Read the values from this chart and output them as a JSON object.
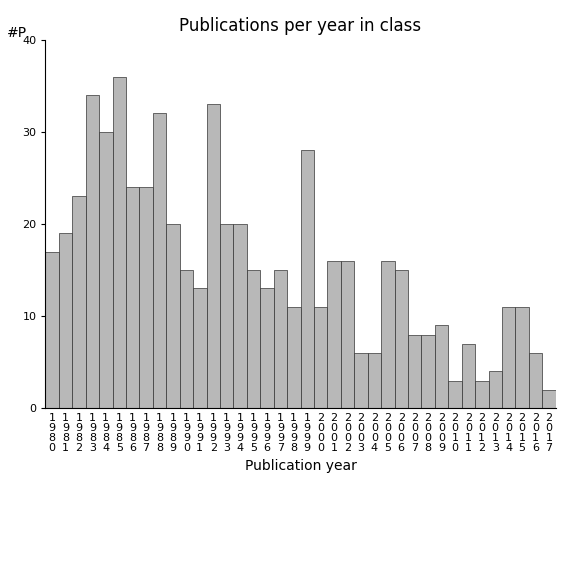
{
  "title": "Publications per year in class",
  "xlabel": "Publication year",
  "ylabel": "#P",
  "bar_color": "#b8b8b8",
  "edge_color": "#333333",
  "background_color": "#ffffff",
  "ylim": [
    0,
    40
  ],
  "yticks": [
    0,
    10,
    20,
    30,
    40
  ],
  "years": [
    1980,
    1981,
    1982,
    1983,
    1984,
    1985,
    1986,
    1987,
    1988,
    1989,
    1990,
    1991,
    1992,
    1993,
    1994,
    1995,
    1996,
    1997,
    1998,
    1999,
    2000,
    2001,
    2002,
    2003,
    2004,
    2005,
    2006,
    2007,
    2008,
    2009,
    2010,
    2011,
    2012,
    2013,
    2014,
    2015,
    2016,
    2017
  ],
  "values": [
    17,
    19,
    23,
    34,
    30,
    36,
    24,
    24,
    32,
    20,
    15,
    13,
    33,
    20,
    20,
    15,
    13,
    15,
    11,
    28,
    11,
    16,
    16,
    6,
    6,
    16,
    15,
    8,
    8,
    9,
    3,
    7,
    3,
    4,
    11,
    11,
    6,
    2
  ],
  "title_fontsize": 12,
  "axis_fontsize": 10,
  "tick_fontsize": 8
}
